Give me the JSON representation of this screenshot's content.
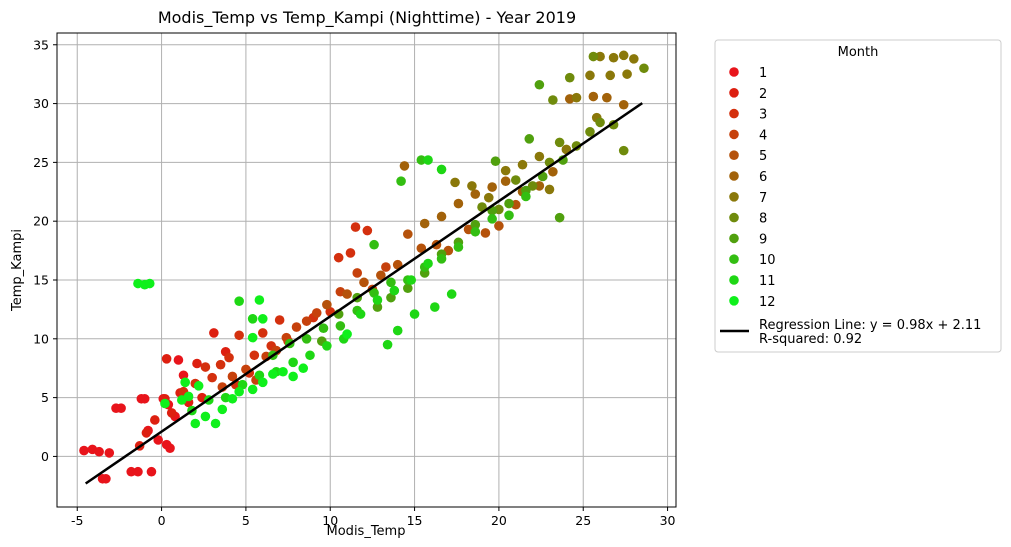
{
  "chart_data": {
    "type": "scatter",
    "title": "Modis_Temp vs Temp_Kampi (Nighttime) - Year 2019",
    "xlabel": "Modis_Temp",
    "ylabel": "Temp_Kampi",
    "xlim": [
      -6.2,
      30.5
    ],
    "ylim": [
      -4.3,
      36
    ],
    "xticks": [
      -5,
      0,
      5,
      10,
      15,
      20,
      25,
      30
    ],
    "yticks": [
      0,
      5,
      10,
      15,
      20,
      25,
      30,
      35
    ],
    "grid": true,
    "legend": {
      "title": "Month",
      "placement": "outside-right",
      "regression_label": "Regression Line: y = 0.98x + 2.11",
      "r_squared_label": "R-squared: 0.92"
    },
    "regression": {
      "slope": 0.98,
      "intercept": 2.11,
      "x_range": [
        -4.5,
        28.5
      ],
      "color": "#000000"
    },
    "series": [
      {
        "name": "1",
        "color": "#e8141b",
        "points": [
          [
            -4.6,
            0.5
          ],
          [
            -4.1,
            0.6
          ],
          [
            -3.7,
            0.4
          ],
          [
            -3.5,
            -1.9
          ],
          [
            -3.3,
            -1.9
          ],
          [
            -3.1,
            0.3
          ],
          [
            -2.7,
            4.1
          ],
          [
            -2.4,
            4.1
          ],
          [
            -1.8,
            -1.3
          ],
          [
            -1.4,
            -1.3
          ],
          [
            -1.2,
            4.9
          ],
          [
            -1.0,
            4.9
          ],
          [
            -0.8,
            2.2
          ],
          [
            -0.6,
            -1.3
          ],
          [
            -0.2,
            1.4
          ],
          [
            0.1,
            4.9
          ],
          [
            0.3,
            1.0
          ],
          [
            0.5,
            0.7
          ],
          [
            0.8,
            3.4
          ],
          [
            1.0,
            8.2
          ],
          [
            1.3,
            6.9
          ],
          [
            0.4,
            4.4
          ]
        ]
      },
      {
        "name": "2",
        "color": "#dd1f10",
        "points": [
          [
            -1.3,
            0.9
          ],
          [
            -0.9,
            2.0
          ],
          [
            -0.4,
            3.1
          ],
          [
            0.2,
            4.9
          ],
          [
            0.6,
            3.7
          ],
          [
            1.1,
            5.4
          ],
          [
            1.6,
            4.6
          ],
          [
            2.1,
            7.9
          ],
          [
            2.4,
            5.0
          ],
          [
            0.3,
            8.3
          ],
          [
            3.1,
            10.5
          ],
          [
            3.8,
            8.9
          ]
        ]
      },
      {
        "name": "3",
        "color": "#d4300e",
        "points": [
          [
            1.3,
            5.5
          ],
          [
            2.0,
            6.2
          ],
          [
            2.6,
            7.6
          ],
          [
            3.0,
            6.7
          ],
          [
            3.5,
            7.8
          ],
          [
            4.0,
            8.4
          ],
          [
            4.4,
            6.1
          ],
          [
            4.6,
            10.3
          ],
          [
            5.2,
            7.1
          ],
          [
            5.5,
            8.6
          ],
          [
            6.0,
            10.5
          ],
          [
            6.5,
            9.4
          ],
          [
            7.0,
            11.6
          ],
          [
            7.5,
            9.8
          ],
          [
            9.0,
            11.8
          ],
          [
            10.0,
            12.3
          ],
          [
            10.5,
            16.9
          ],
          [
            11.2,
            17.3
          ],
          [
            11.5,
            19.5
          ],
          [
            12.2,
            19.2
          ]
        ]
      },
      {
        "name": "4",
        "color": "#c6410c",
        "points": [
          [
            3.6,
            5.9
          ],
          [
            4.2,
            6.8
          ],
          [
            5.0,
            7.4
          ],
          [
            5.6,
            6.5
          ],
          [
            6.2,
            8.5
          ],
          [
            6.8,
            9.0
          ],
          [
            7.4,
            10.1
          ],
          [
            8.0,
            11.0
          ],
          [
            8.6,
            11.5
          ],
          [
            9.2,
            12.2
          ],
          [
            10.6,
            14.0
          ],
          [
            11.6,
            15.6
          ],
          [
            12.5,
            14.2
          ],
          [
            13.3,
            16.1
          ]
        ]
      },
      {
        "name": "5",
        "color": "#b5520b",
        "points": [
          [
            9.8,
            12.9
          ],
          [
            11.0,
            13.8
          ],
          [
            12.0,
            14.8
          ],
          [
            13.0,
            15.4
          ],
          [
            14.0,
            16.3
          ],
          [
            14.6,
            18.9
          ],
          [
            15.4,
            17.7
          ],
          [
            16.3,
            18.0
          ],
          [
            17.0,
            17.5
          ],
          [
            18.2,
            19.3
          ],
          [
            19.2,
            19.0
          ],
          [
            20.0,
            19.6
          ],
          [
            21.0,
            21.4
          ]
        ]
      },
      {
        "name": "6",
        "color": "#a2620a",
        "points": [
          [
            14.4,
            24.7
          ],
          [
            15.6,
            19.8
          ],
          [
            16.6,
            20.4
          ],
          [
            17.6,
            21.5
          ],
          [
            18.6,
            22.3
          ],
          [
            19.6,
            22.9
          ],
          [
            20.4,
            23.4
          ],
          [
            21.4,
            22.5
          ],
          [
            22.4,
            23.0
          ],
          [
            23.2,
            24.2
          ],
          [
            24.2,
            30.4
          ],
          [
            25.6,
            30.6
          ],
          [
            26.4,
            30.5
          ],
          [
            27.4,
            29.9
          ]
        ]
      },
      {
        "name": "7",
        "color": "#8a780a",
        "points": [
          [
            17.4,
            23.3
          ],
          [
            18.4,
            23.0
          ],
          [
            19.4,
            22.0
          ],
          [
            20.4,
            24.3
          ],
          [
            21.4,
            24.8
          ],
          [
            22.4,
            25.5
          ],
          [
            23.0,
            22.7
          ],
          [
            24.0,
            26.1
          ],
          [
            24.6,
            30.5
          ],
          [
            25.4,
            32.4
          ],
          [
            26.0,
            34.0
          ],
          [
            26.8,
            33.9
          ],
          [
            27.4,
            34.1
          ],
          [
            28.0,
            33.8
          ],
          [
            26.6,
            32.4
          ],
          [
            27.6,
            32.5
          ],
          [
            25.8,
            28.8
          ]
        ]
      },
      {
        "name": "8",
        "color": "#6f8b0c",
        "points": [
          [
            19.0,
            21.2
          ],
          [
            20.0,
            21.0
          ],
          [
            21.0,
            23.5
          ],
          [
            22.0,
            23.0
          ],
          [
            23.0,
            25.0
          ],
          [
            23.6,
            26.7
          ],
          [
            24.6,
            26.4
          ],
          [
            25.4,
            27.6
          ],
          [
            26.0,
            28.4
          ],
          [
            26.8,
            28.2
          ],
          [
            27.4,
            26.0
          ],
          [
            28.6,
            33.0
          ],
          [
            23.2,
            30.3
          ],
          [
            24.2,
            32.2
          ],
          [
            25.6,
            34.0
          ]
        ]
      },
      {
        "name": "9",
        "color": "#50a00e",
        "points": [
          [
            9.5,
            9.8
          ],
          [
            10.5,
            12.1
          ],
          [
            11.6,
            13.5
          ],
          [
            12.8,
            12.7
          ],
          [
            13.6,
            13.5
          ],
          [
            14.6,
            14.3
          ],
          [
            15.6,
            15.6
          ],
          [
            16.6,
            17.2
          ],
          [
            17.6,
            18.2
          ],
          [
            18.6,
            19.7
          ],
          [
            19.6,
            20.9
          ],
          [
            20.6,
            21.5
          ],
          [
            21.6,
            22.6
          ],
          [
            22.6,
            23.8
          ],
          [
            23.8,
            25.2
          ],
          [
            22.4,
            31.6
          ],
          [
            21.8,
            27.0
          ],
          [
            19.8,
            25.1
          ],
          [
            23.6,
            20.3
          ]
        ]
      },
      {
        "name": "10",
        "color": "#33be12",
        "points": [
          [
            6.6,
            8.6
          ],
          [
            7.6,
            9.6
          ],
          [
            8.6,
            10.0
          ],
          [
            9.6,
            10.9
          ],
          [
            10.6,
            11.1
          ],
          [
            11.6,
            12.4
          ],
          [
            12.6,
            13.9
          ],
          [
            13.6,
            14.8
          ],
          [
            14.6,
            15.0
          ],
          [
            15.6,
            16.1
          ],
          [
            16.6,
            16.8
          ],
          [
            17.6,
            17.8
          ],
          [
            18.6,
            19.1
          ],
          [
            19.6,
            20.2
          ],
          [
            20.6,
            20.5
          ],
          [
            21.6,
            22.1
          ],
          [
            15.4,
            25.2
          ],
          [
            14.2,
            23.4
          ],
          [
            12.6,
            18.0
          ]
        ]
      },
      {
        "name": "11",
        "color": "#1ed714",
        "points": [
          [
            1.8,
            3.9
          ],
          [
            2.8,
            4.8
          ],
          [
            3.8,
            5.0
          ],
          [
            4.8,
            6.1
          ],
          [
            5.8,
            6.9
          ],
          [
            6.8,
            7.2
          ],
          [
            7.8,
            8.0
          ],
          [
            8.8,
            8.6
          ],
          [
            9.8,
            9.4
          ],
          [
            10.8,
            10.0
          ],
          [
            11.8,
            12.1
          ],
          [
            12.8,
            13.3
          ],
          [
            13.8,
            14.1
          ],
          [
            14.8,
            15.0
          ],
          [
            15.8,
            16.4
          ],
          [
            4.6,
            13.2
          ],
          [
            5.4,
            11.7
          ],
          [
            13.4,
            9.5
          ],
          [
            14.0,
            10.7
          ],
          [
            15.0,
            12.1
          ],
          [
            16.2,
            12.7
          ],
          [
            17.2,
            13.8
          ],
          [
            16.6,
            24.4
          ],
          [
            15.8,
            25.2
          ]
        ]
      },
      {
        "name": "12",
        "color": "#0ff01b",
        "points": [
          [
            -1.4,
            14.7
          ],
          [
            -1.0,
            14.6
          ],
          [
            -0.7,
            14.7
          ],
          [
            0.2,
            4.5
          ],
          [
            1.2,
            4.8
          ],
          [
            1.6,
            5.1
          ],
          [
            2.0,
            2.8
          ],
          [
            2.6,
            3.4
          ],
          [
            3.2,
            2.8
          ],
          [
            3.6,
            4.0
          ],
          [
            4.2,
            4.9
          ],
          [
            4.6,
            5.5
          ],
          [
            5.4,
            5.7
          ],
          [
            6.0,
            6.3
          ],
          [
            6.6,
            7.0
          ],
          [
            7.2,
            7.2
          ],
          [
            7.8,
            6.8
          ],
          [
            8.4,
            7.5
          ],
          [
            5.8,
            13.3
          ],
          [
            6.0,
            11.7
          ],
          [
            5.4,
            10.1
          ],
          [
            11.0,
            10.4
          ],
          [
            1.4,
            6.3
          ],
          [
            2.2,
            6.0
          ]
        ]
      }
    ]
  }
}
